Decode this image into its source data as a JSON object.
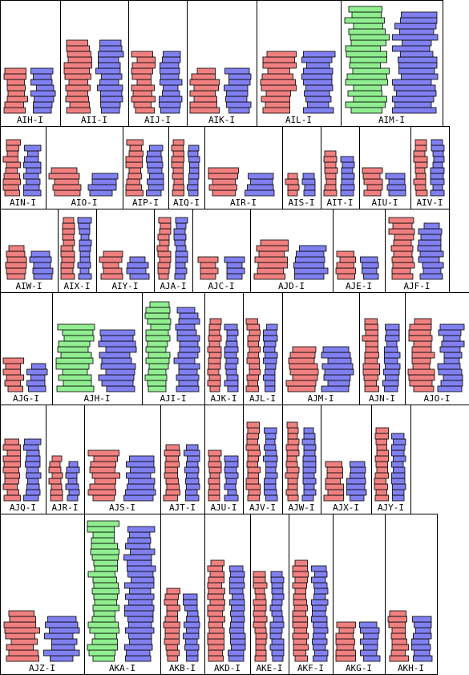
{
  "rows": [
    [
      "AIH-I",
      "AII-I",
      "AIJ-I",
      "AIK-I",
      "AIL-I",
      "AIM-I"
    ],
    [
      "AIN-I",
      "AIO-I",
      "AIP-I",
      "AIQ-I",
      "AIR-I",
      "AIS-I",
      "AIT-I",
      "AIU-I",
      "AIV-I"
    ],
    [
      "AIW-I",
      "AIX-I",
      "AIY-I",
      "AJA-I",
      "AJC-I",
      "AJD-I",
      "AJE-I",
      "AJF-I"
    ],
    [
      "AJG-I",
      "AJH-I",
      "AJI-I",
      "AJK-I",
      "AJL-I",
      "AJM-I",
      "AJN-I",
      "AJO-I"
    ],
    [
      "AJQ-I",
      "AJR-I",
      "AJS-I",
      "AJT-I",
      "AJU-I",
      "AJV-I",
      "AJW-I",
      "AJX-I",
      "AJY-I"
    ],
    [
      "AJZ-I",
      "AKA-I",
      "AKB-I",
      "AKD-I",
      "AKE-I",
      "AKF-I",
      "AKG-I",
      "AKH-I"
    ]
  ]
}
